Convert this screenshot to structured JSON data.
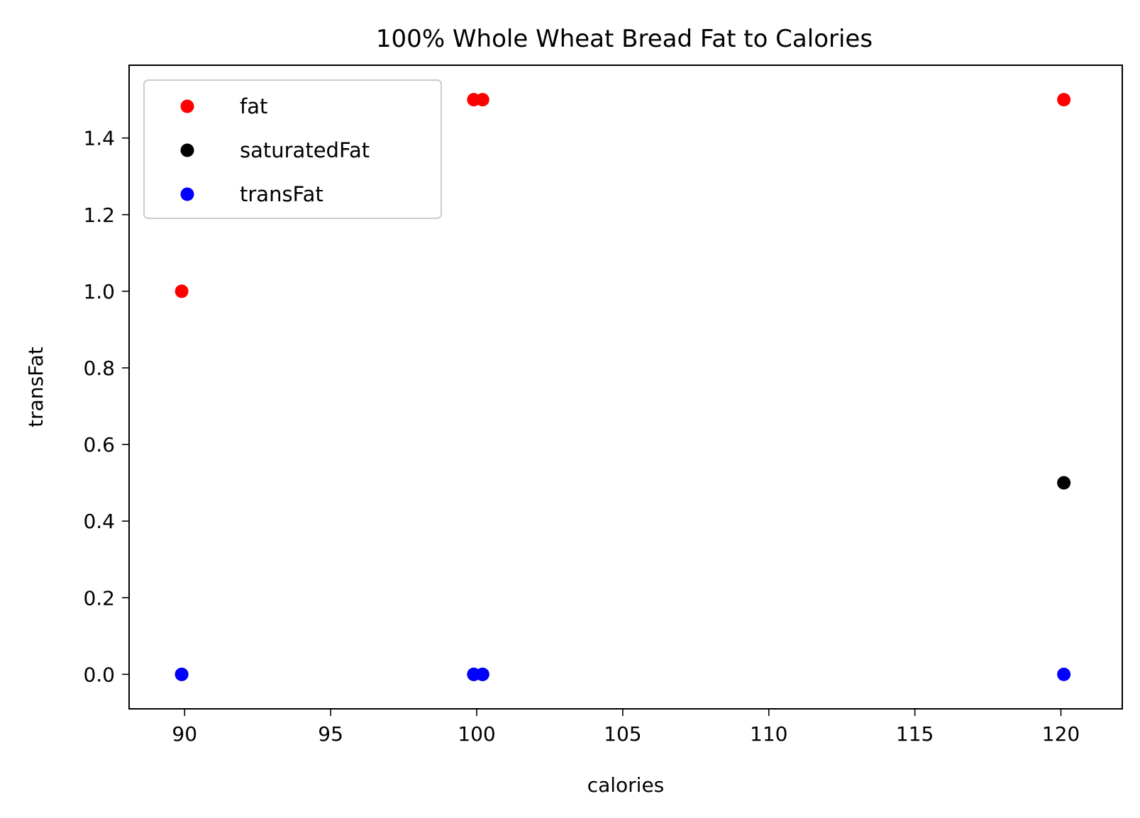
{
  "chart_data": {
    "type": "scatter",
    "title": "100% Whole Wheat Bread Fat to Calories",
    "xlabel": "calories",
    "ylabel": "transFat",
    "xlim": [
      88.1,
      122.1
    ],
    "ylim": [
      -0.09,
      1.59
    ],
    "xticks": [
      90,
      95,
      100,
      105,
      110,
      115,
      120
    ],
    "xtick_labels": [
      "90",
      "95",
      "100",
      "105",
      "110",
      "115",
      "120"
    ],
    "yticks": [
      0.0,
      0.2,
      0.4,
      0.6,
      0.8,
      1.0,
      1.2,
      1.4
    ],
    "ytick_labels": [
      "0.0",
      "0.2",
      "0.4",
      "0.6",
      "0.8",
      "1.0",
      "1.2",
      "1.4"
    ],
    "grid": false,
    "legend_position": "top-left",
    "series": [
      {
        "name": "fat",
        "color": "#ff0000",
        "x": [
          89.9,
          99.9,
          100.2,
          120.1
        ],
        "y": [
          1.0,
          1.5,
          1.5,
          1.5
        ]
      },
      {
        "name": "saturatedFat",
        "color": "#000000",
        "x": [
          89.9,
          99.9,
          100.2,
          120.1
        ],
        "y": [
          0.0,
          0.0,
          0.0,
          0.5
        ]
      },
      {
        "name": "transFat",
        "color": "#0000ff",
        "x": [
          89.9,
          99.9,
          100.2,
          120.1
        ],
        "y": [
          0.0,
          0.0,
          0.0,
          0.0
        ]
      }
    ]
  }
}
